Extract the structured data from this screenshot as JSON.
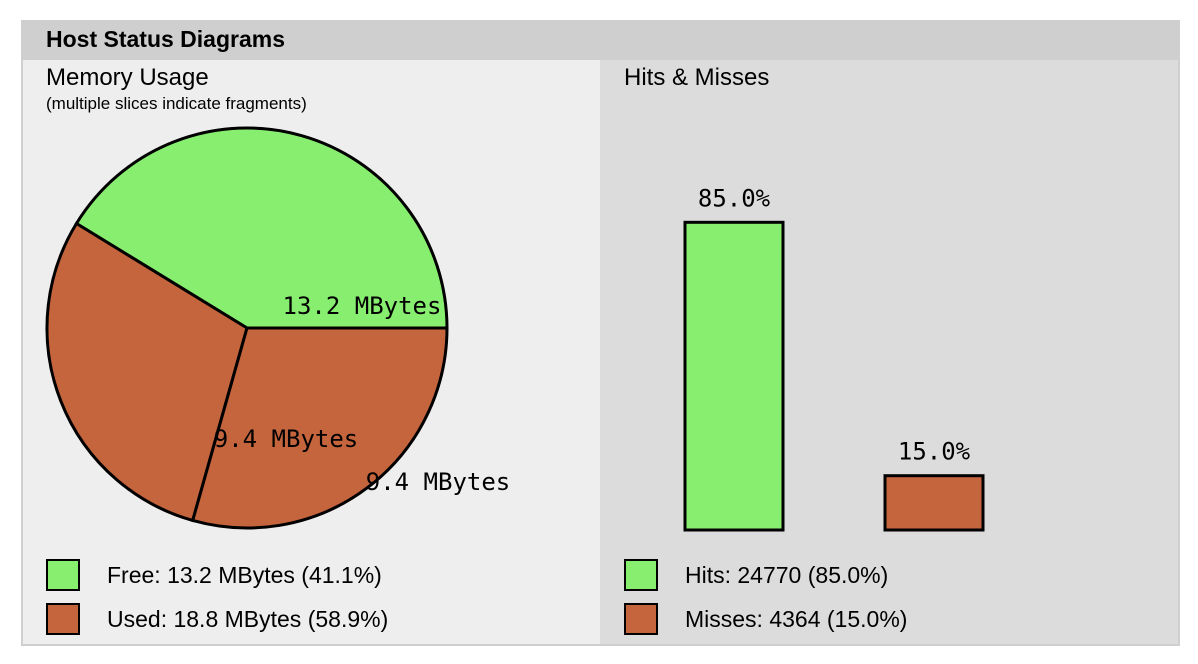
{
  "header": {
    "title": "Host Status Diagrams"
  },
  "colors": {
    "free": "#88ee70",
    "used": "#c5653d",
    "hits": "#88ee70",
    "misses": "#c5653d"
  },
  "chart_data": [
    {
      "type": "pie",
      "title": "Memory Usage",
      "subtitle": "(multiple slices indicate fragments)",
      "slices": [
        {
          "category": "Free",
          "value": 13.2,
          "label": "13.2 MBytes"
        },
        {
          "category": "Used",
          "value": 9.4,
          "label": "9.4 MBytes"
        },
        {
          "category": "Used",
          "value": 9.4,
          "label": "9.4 MBytes"
        }
      ],
      "legend": [
        {
          "text": "Free: 13.2 MBytes (41.1%)",
          "color_key": "free"
        },
        {
          "text": "Used: 18.8 MBytes (58.9%)",
          "color_key": "used"
        }
      ]
    },
    {
      "type": "bar",
      "title": "Hits & Misses",
      "categories": [
        "Hits",
        "Misses"
      ],
      "values": [
        85.0,
        15.0
      ],
      "data_labels": [
        "85.0%",
        "15.0%"
      ],
      "ylim": [
        0,
        100
      ],
      "legend": [
        {
          "text": "Hits: 24770 (85.0%)",
          "color_key": "hits"
        },
        {
          "text": "Misses: 4364 (15.0%)",
          "color_key": "misses"
        }
      ]
    }
  ]
}
